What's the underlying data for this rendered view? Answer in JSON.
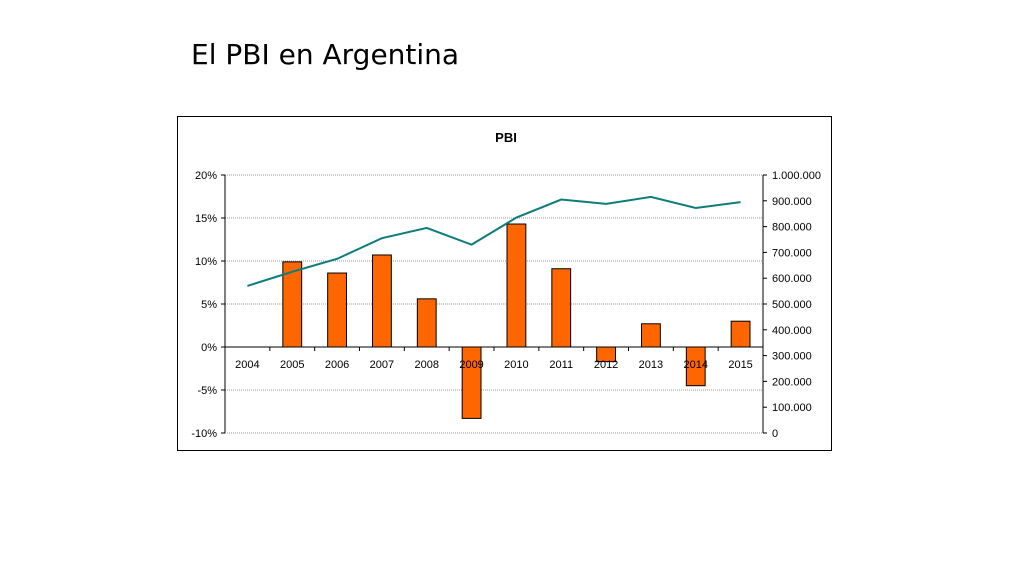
{
  "slide": {
    "title": "El PBI en Argentina"
  },
  "chart_data": {
    "type": "bar+line",
    "title": "PBI",
    "categories": [
      "2004",
      "2005",
      "2006",
      "2007",
      "2008",
      "2009",
      "2010",
      "2011",
      "2012",
      "2013",
      "2014",
      "2015"
    ],
    "series": [
      {
        "name": "",
        "type": "bar",
        "axis": "left",
        "color": "#FF6600",
        "values": [
          null,
          9.9,
          8.6,
          10.7,
          5.6,
          -8.3,
          14.3,
          9.1,
          -1.7,
          2.7,
          -4.5,
          3.0
        ]
      },
      {
        "name": "",
        "type": "line",
        "axis": "right",
        "color": "#0E7C7B",
        "values": [
          570000,
          625000,
          675000,
          755000,
          795000,
          730000,
          835000,
          905000,
          888000,
          915000,
          872000,
          895000
        ]
      }
    ],
    "y_left": {
      "ylim": [
        -10,
        20
      ],
      "ticks": [
        -10,
        -5,
        0,
        5,
        10,
        15,
        20
      ],
      "tick_labels": [
        "-10%",
        "-5%",
        "0%",
        "5%",
        "10%",
        "15%",
        "20%"
      ]
    },
    "y_right": {
      "ylim": [
        0,
        1000000
      ],
      "ticks": [
        0,
        100000,
        200000,
        300000,
        400000,
        500000,
        600000,
        700000,
        800000,
        900000,
        1000000
      ],
      "tick_labels": [
        "0",
        "100.000",
        "200.000",
        "300.000",
        "400.000",
        "500.000",
        "600.000",
        "700.000",
        "800.000",
        "900.000",
        "1.000.000"
      ]
    },
    "grid": true,
    "legend": "none"
  }
}
